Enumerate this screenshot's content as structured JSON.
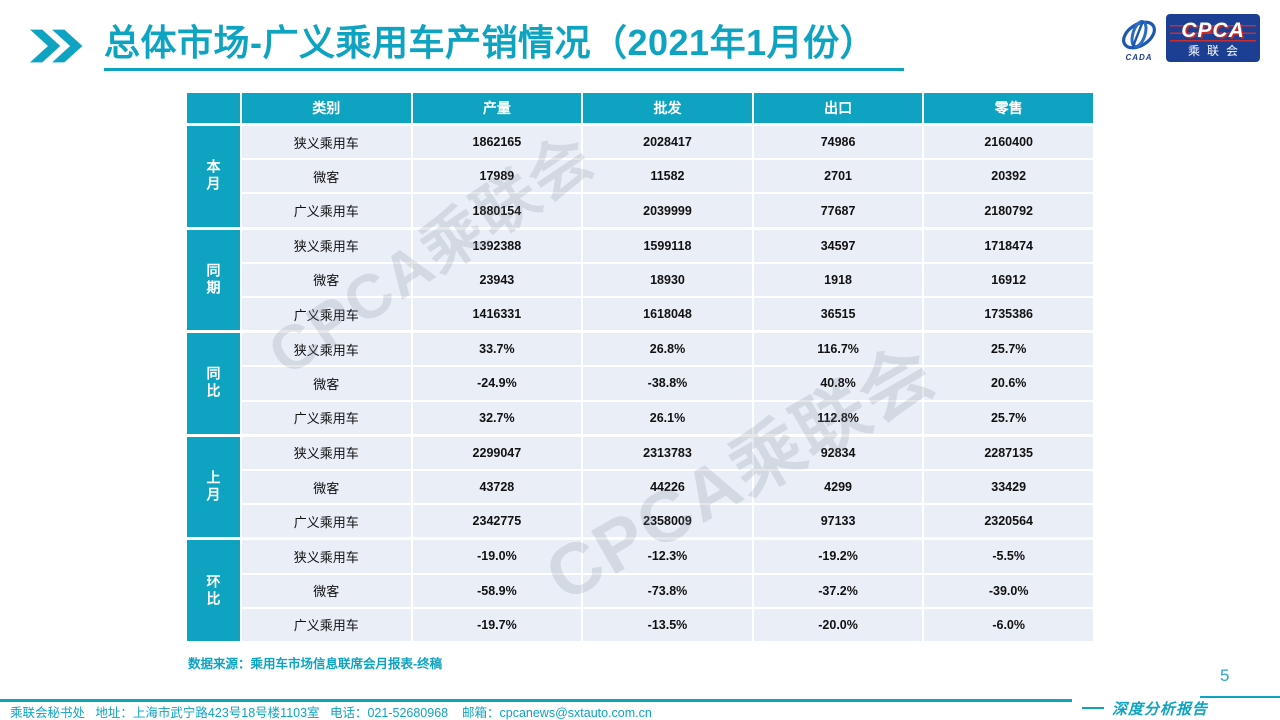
{
  "title": "总体市场-广义乘用车产销情况（2021年1月份）",
  "logo": {
    "emblem_text": "CADA",
    "box_acronym": "CPCA",
    "box_name": "乘联会"
  },
  "watermark": {
    "text": "CPCA乘联会"
  },
  "colors": {
    "accent": "#0FA3C2",
    "logo_navy": "#1C3F94",
    "logo_red": "#CE2B23",
    "row_bg": "#E9EEF7"
  },
  "table": {
    "columns": [
      "类别",
      "产量",
      "批发",
      "出口",
      "零售"
    ],
    "groups": [
      {
        "label": "本月",
        "rows": [
          {
            "category": "狭义乘用车",
            "values": [
              "1862165",
              "2028417",
              "74986",
              "2160400"
            ]
          },
          {
            "category": "微客",
            "values": [
              "17989",
              "11582",
              "2701",
              "20392"
            ]
          },
          {
            "category": "广义乘用车",
            "values": [
              "1880154",
              "2039999",
              "77687",
              "2180792"
            ]
          }
        ]
      },
      {
        "label": "同期",
        "rows": [
          {
            "category": "狭义乘用车",
            "values": [
              "1392388",
              "1599118",
              "34597",
              "1718474"
            ]
          },
          {
            "category": "微客",
            "values": [
              "23943",
              "18930",
              "1918",
              "16912"
            ]
          },
          {
            "category": "广义乘用车",
            "values": [
              "1416331",
              "1618048",
              "36515",
              "1735386"
            ]
          }
        ]
      },
      {
        "label": "同比",
        "rows": [
          {
            "category": "狭义乘用车",
            "values": [
              "33.7%",
              "26.8%",
              "116.7%",
              "25.7%"
            ]
          },
          {
            "category": "微客",
            "values": [
              "-24.9%",
              "-38.8%",
              "40.8%",
              "20.6%"
            ]
          },
          {
            "category": "广义乘用车",
            "values": [
              "32.7%",
              "26.1%",
              "112.8%",
              "25.7%"
            ]
          }
        ]
      },
      {
        "label": "上月",
        "rows": [
          {
            "category": "狭义乘用车",
            "values": [
              "2299047",
              "2313783",
              "92834",
              "2287135"
            ]
          },
          {
            "category": "微客",
            "values": [
              "43728",
              "44226",
              "4299",
              "33429"
            ]
          },
          {
            "category": "广义乘用车",
            "values": [
              "2342775",
              "2358009",
              "97133",
              "2320564"
            ]
          }
        ]
      },
      {
        "label": "环比",
        "rows": [
          {
            "category": "狭义乘用车",
            "values": [
              "-19.0%",
              "-12.3%",
              "-19.2%",
              "-5.5%"
            ]
          },
          {
            "category": "微客",
            "values": [
              "-58.9%",
              "-73.8%",
              "-37.2%",
              "-39.0%"
            ]
          },
          {
            "category": "广义乘用车",
            "values": [
              "-19.7%",
              "-13.5%",
              "-20.0%",
              "-6.0%"
            ]
          }
        ]
      }
    ]
  },
  "source_note": "数据来源：乘用车市场信息联席会月报表-终稿",
  "footer": {
    "contact": "乘联会秘书处   地址：上海市武宁路423号18号楼1103室   电话：021-52680968    邮箱：cpcanews@sxtauto.com.cn",
    "report_label": "深度分析报告",
    "page_number": "5"
  }
}
